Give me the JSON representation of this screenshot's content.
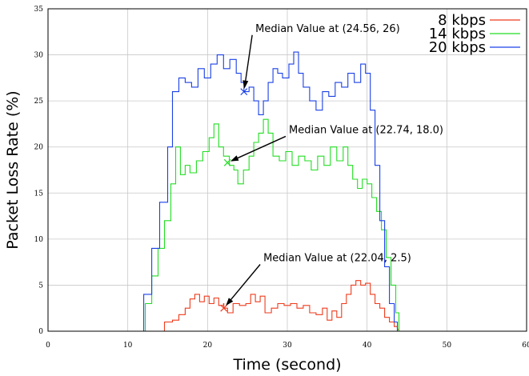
{
  "chart_data": {
    "type": "line",
    "title": "",
    "xlabel": "Time (second)",
    "ylabel": "Packet Loss Rate (%)",
    "xlim": [
      0,
      60
    ],
    "ylim": [
      0,
      35
    ],
    "xticks": [
      0,
      10,
      20,
      30,
      40,
      50,
      60
    ],
    "xtick_labels": [
      "0",
      "10",
      "20",
      "30",
      "40",
      "50",
      "60"
    ],
    "yticks": [
      0,
      5,
      10,
      15,
      20,
      25,
      30,
      35
    ],
    "ytick_labels": [
      "0",
      "5",
      "10",
      "15",
      "20",
      "25",
      "30",
      "35"
    ],
    "grid": true,
    "legend": "top-right",
    "series": [
      {
        "name": "8 kbps",
        "color": "#ee3b1c",
        "x": [
          0,
          13,
          14.2,
          14.6,
          15.6,
          16.4,
          17.2,
          17.8,
          18.4,
          19.0,
          19.6,
          20.2,
          20.8,
          21.4,
          22.0,
          22.04,
          22.5,
          23.2,
          24.0,
          24.8,
          25.4,
          26.0,
          26.6,
          27.2,
          28.0,
          28.8,
          29.6,
          30.4,
          31.2,
          32.0,
          32.8,
          33.6,
          34.4,
          35.0,
          35.6,
          36.2,
          36.8,
          37.4,
          38.0,
          38.6,
          39.2,
          39.8,
          40.4,
          41.0,
          41.6,
          42.2,
          42.8,
          43.4,
          43.8,
          44.0,
          50,
          60
        ],
        "y": [
          0,
          0,
          0,
          1.0,
          1.2,
          1.8,
          2.5,
          3.5,
          4.0,
          3.2,
          3.8,
          3.0,
          3.6,
          2.8,
          3.0,
          2.5,
          2.0,
          3.0,
          2.8,
          3.0,
          4.0,
          3.2,
          3.8,
          2.0,
          2.5,
          3.0,
          2.8,
          3.0,
          2.5,
          2.8,
          2.0,
          1.8,
          2.5,
          1.2,
          2.2,
          1.5,
          3.0,
          4.0,
          5.0,
          5.5,
          5.0,
          5.2,
          4.0,
          3.0,
          2.5,
          1.5,
          1.0,
          0.5,
          0.2,
          0,
          0,
          0
        ]
      },
      {
        "name": "14 kbps",
        "color": "#22dd22",
        "x": [
          0,
          11.6,
          12.2,
          13.0,
          13.8,
          14.6,
          15.4,
          16.0,
          16.6,
          17.2,
          17.8,
          18.6,
          19.4,
          20.2,
          20.8,
          21.4,
          22.0,
          22.74,
          23.3,
          23.8,
          24.5,
          25.2,
          25.8,
          26.4,
          27.0,
          27.6,
          28.2,
          29.0,
          29.8,
          30.6,
          31.4,
          32.2,
          33.0,
          33.8,
          34.6,
          35.4,
          36.2,
          37.0,
          37.6,
          38.2,
          38.8,
          39.4,
          40.0,
          40.6,
          41.2,
          41.8,
          42.4,
          43.0,
          43.6,
          44.0,
          50,
          60
        ],
        "y": [
          0,
          0,
          3.0,
          6.0,
          9.0,
          12.0,
          16.0,
          20.0,
          17.0,
          18.0,
          17.2,
          18.5,
          19.5,
          21.0,
          22.5,
          20.0,
          19.0,
          18.0,
          17.5,
          16.0,
          17.5,
          19.0,
          20.5,
          21.5,
          23.0,
          21.5,
          19.0,
          18.5,
          19.5,
          18.0,
          19.0,
          18.5,
          17.5,
          19.0,
          18.0,
          20.0,
          18.5,
          20.0,
          18.0,
          16.5,
          15.5,
          16.5,
          16.0,
          14.5,
          13.0,
          11.0,
          8.0,
          5.0,
          2.0,
          0,
          0,
          0
        ]
      },
      {
        "name": "20 kbps",
        "color": "#1a40e6",
        "x": [
          0,
          11.2,
          12.0,
          13.0,
          14.0,
          15.0,
          15.6,
          16.4,
          17.2,
          18.0,
          18.8,
          19.6,
          20.4,
          21.2,
          22.0,
          22.8,
          23.6,
          24.2,
          24.56,
          25.2,
          25.8,
          26.4,
          27.0,
          27.6,
          28.2,
          28.8,
          29.4,
          30.2,
          30.8,
          31.4,
          32.0,
          32.8,
          33.6,
          34.4,
          35.2,
          36.0,
          36.8,
          37.6,
          38.4,
          39.2,
          39.8,
          40.4,
          41.0,
          41.6,
          42.2,
          42.8,
          43.4,
          43.8,
          50,
          60
        ],
        "y": [
          0,
          0,
          4.0,
          9.0,
          14.0,
          20.0,
          26.0,
          27.5,
          27.0,
          26.5,
          28.5,
          27.5,
          29.0,
          30.0,
          28.5,
          29.5,
          28.0,
          27.0,
          26.0,
          26.5,
          25.0,
          23.5,
          25.0,
          27.0,
          28.5,
          28.0,
          27.5,
          29.0,
          30.3,
          28.0,
          26.5,
          25.0,
          24.0,
          26.0,
          25.5,
          27.0,
          26.5,
          28.0,
          27.0,
          29.0,
          28.0,
          24.0,
          18.0,
          12.0,
          7.0,
          3.0,
          1.0,
          0,
          0,
          0
        ]
      }
    ],
    "annotations": [
      {
        "text": "Median Value at (24.56,  26)",
        "point": [
          24.56,
          26
        ],
        "color": "#1a40e6",
        "text_pos": [
          26.0,
          32.5
        ]
      },
      {
        "text": "Median Value at (22.74, 18.0)",
        "point": [
          22.5,
          18.3
        ],
        "color": "#22dd22",
        "text_pos": [
          30.2,
          21.5
        ]
      },
      {
        "text": "Median Value at (22.04, 2.5)",
        "point": [
          22.04,
          2.5
        ],
        "color": "#ee3b1c",
        "text_pos": [
          27.0,
          7.6
        ]
      }
    ]
  }
}
